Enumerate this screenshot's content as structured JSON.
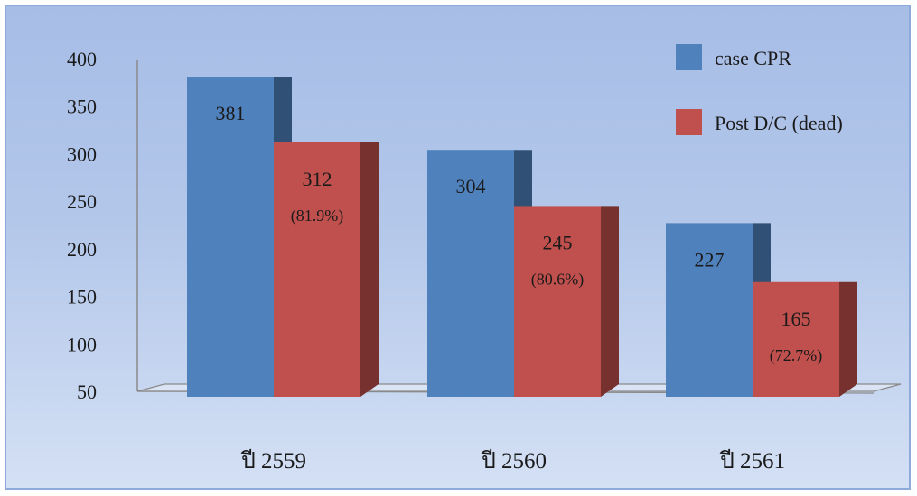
{
  "chart_data": {
    "type": "bar",
    "categories": [
      "ปี 2559",
      "ปี 2560",
      "ปี 2561"
    ],
    "series": [
      {
        "name": "case CPR",
        "values": [
          381,
          304,
          227
        ],
        "color": "#4f81bd",
        "labels": [
          "381",
          "304",
          "227"
        ]
      },
      {
        "name": "Post D/C (dead)",
        "values": [
          312,
          245,
          165
        ],
        "color": "#c0504d",
        "labels": [
          "312",
          "245",
          "165"
        ],
        "percent_labels": [
          "(81.9%)",
          "(80.6%)",
          "(72.7%)"
        ]
      }
    ],
    "yticks": [
      "400",
      "350",
      "300",
      "250",
      "200",
      "150",
      "100",
      "50"
    ],
    "ylim": [
      50,
      400
    ],
    "legend_position": "top-right",
    "grid": false,
    "style": "3d-column"
  }
}
